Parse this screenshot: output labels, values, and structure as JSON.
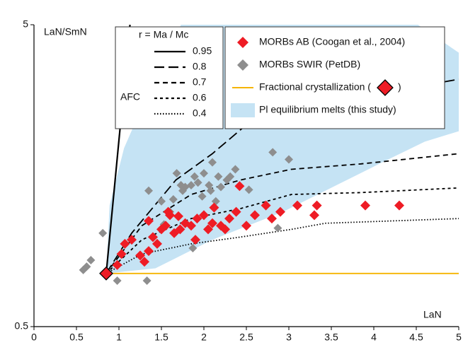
{
  "chart_data": {
    "type": "scatter",
    "y_log": true,
    "xlim": [
      0,
      5
    ],
    "ylim": [
      0.5,
      5
    ],
    "xticks": [
      0,
      0.5,
      1,
      1.5,
      2,
      2.5,
      3,
      3.5,
      4,
      4.5,
      5
    ],
    "yticks": [
      0.5,
      5
    ],
    "xlabel": "LaN",
    "ylabel": "LaN/SmN",
    "afc_label": "AFC",
    "legend_title": "r = Ma / Mc",
    "series": [
      {
        "name": "MORBs AB (Coogan et al., 2004)",
        "kind": "scatter",
        "legend": "main",
        "color": "#ee1c25",
        "x": [
          0.98,
          1.03,
          1.07,
          1.15,
          1.3,
          1.35,
          1.4,
          1.45,
          1.5,
          1.55,
          1.58,
          1.6,
          1.65,
          1.72,
          1.78,
          1.85,
          1.92,
          2.0,
          2.05,
          2.1,
          2.2,
          2.25,
          2.3,
          2.38,
          2.42,
          2.5,
          2.6,
          2.73,
          2.8,
          2.9,
          3.1,
          3.3,
          3.33,
          3.9,
          4.3,
          1.25,
          1.9,
          2.12,
          1.7,
          1.35
        ],
        "values": [
          0.8,
          0.87,
          0.94,
          0.97,
          0.82,
          0.89,
          0.99,
          0.94,
          1.05,
          1.08,
          1.2,
          1.17,
          1.02,
          1.05,
          1.1,
          1.08,
          1.14,
          1.17,
          1.05,
          1.1,
          1.08,
          1.05,
          1.14,
          1.2,
          1.46,
          1.08,
          1.17,
          1.26,
          1.14,
          1.2,
          1.26,
          1.17,
          1.26,
          1.26,
          1.26,
          0.86,
          0.97,
          1.24,
          1.16,
          1.12
        ]
      },
      {
        "name": "MORBs SWIR (PetDB)",
        "kind": "scatter",
        "legend": "main",
        "color": "#8e8e8e",
        "x": [
          0.58,
          0.67,
          0.62,
          0.81,
          0.98,
          1.33,
          1.35,
          1.5,
          1.6,
          1.68,
          1.73,
          1.75,
          1.78,
          1.85,
          1.89,
          1.93,
          2.0,
          2.06,
          2.1,
          2.17,
          2.2,
          2.27,
          2.31,
          2.37,
          2.53,
          2.81,
          3.0,
          2.87,
          1.53,
          1.87,
          1.64,
          1.98,
          2.14,
          2.08
        ],
        "values": [
          0.77,
          0.83,
          0.79,
          1.02,
          0.71,
          0.71,
          1.41,
          1.3,
          1.2,
          1.61,
          1.47,
          1.41,
          1.45,
          1.47,
          1.57,
          1.5,
          1.61,
          1.47,
          1.75,
          1.57,
          1.45,
          1.53,
          1.57,
          1.66,
          1.42,
          1.89,
          1.79,
          1.06,
          1.09,
          0.91,
          1.32,
          1.35,
          1.3,
          1.41
        ]
      },
      {
        "name": "Fractional crystallization (",
        "name_suffix": ")",
        "kind": "line",
        "legend": "main",
        "color": "#f5b400",
        "style": "solid",
        "start_marker": true,
        "x": [
          0.85,
          5
        ],
        "values": [
          0.75,
          0.75
        ]
      },
      {
        "name": "Pl equilibrium melts (this study)",
        "kind": "area",
        "legend": "main",
        "color": "#c5e3f4",
        "x": [
          0.85,
          0.89,
          1.06,
          1.39,
          1.73,
          4.52,
          5,
          5,
          4.6,
          4.1,
          3.43,
          2.93,
          2.1,
          1.43
        ],
        "values": [
          0.75,
          1.26,
          1.95,
          3.19,
          5,
          5,
          4.04,
          2.22,
          2.05,
          1.75,
          1.41,
          1.2,
          0.97,
          0.78
        ]
      },
      {
        "name": "0.95",
        "kind": "line",
        "legend": "afc",
        "color": "#000000",
        "style": "solid",
        "x": [
          0.85,
          1.13
        ],
        "values": [
          0.75,
          5
        ]
      },
      {
        "name": "0.8",
        "kind": "line",
        "legend": "afc",
        "color": "#000000",
        "style": "longdash",
        "x": [
          0.85,
          1.15,
          1.67,
          2.1,
          2.53,
          3.0,
          4.27,
          5
        ],
        "values": [
          0.75,
          1.02,
          1.53,
          1.87,
          2.37,
          2.65,
          3.03,
          3.3
        ]
      },
      {
        "name": "0.7",
        "kind": "line",
        "legend": "afc",
        "color": "#000000",
        "style": "dash",
        "x": [
          0.85,
          1.27,
          1.85,
          2.43,
          3.03,
          3.85,
          5
        ],
        "values": [
          0.75,
          1.08,
          1.37,
          1.53,
          1.66,
          1.73,
          1.87
        ]
      },
      {
        "name": "0.6",
        "kind": "line",
        "legend": "afc",
        "color": "#000000",
        "style": "shortdash",
        "x": [
          0.85,
          1.27,
          1.85,
          2.43,
          3.03,
          3.85,
          5
        ],
        "values": [
          0.75,
          0.97,
          1.14,
          1.23,
          1.37,
          1.39,
          1.44
        ]
      },
      {
        "name": "0.4",
        "kind": "line",
        "legend": "afc",
        "color": "#000000",
        "style": "dot",
        "x": [
          0.85,
          1.27,
          1.85,
          2.43,
          3.03,
          3.43,
          5
        ],
        "values": [
          0.75,
          0.87,
          0.94,
          0.99,
          1.05,
          1.1,
          1.14
        ]
      }
    ]
  }
}
